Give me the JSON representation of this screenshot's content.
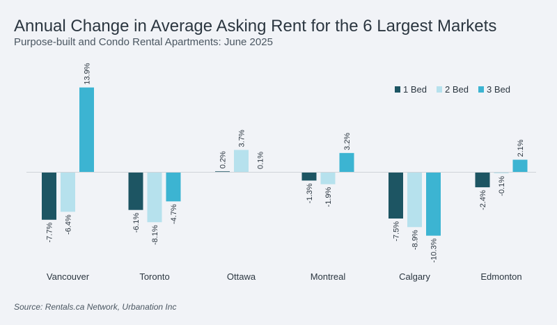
{
  "chart_data": {
    "type": "bar",
    "title": "Annual Change in Average Asking Rent for the 6 Largest Markets",
    "subtitle": "Purpose-built and Condo Rental Apartments: June 2025",
    "source": "Source: Rentals.ca Network, Urbanation Inc",
    "categories": [
      "Vancouver",
      "Toronto",
      "Ottawa",
      "Montreal",
      "Calgary",
      "Edmonton"
    ],
    "series": [
      {
        "name": "1 Bed",
        "color": "#1d5563",
        "values": [
          -7.7,
          -6.1,
          0.2,
          -1.3,
          -7.5,
          -2.4
        ],
        "labels": [
          "-7.7%",
          "-6.1%",
          "0.2%",
          "-1.3%",
          "-7.5%",
          "-2.4%"
        ]
      },
      {
        "name": "2 Bed",
        "color": "#b6e1ed",
        "values": [
          -6.4,
          -8.1,
          3.7,
          -1.9,
          -8.9,
          -0.1
        ],
        "labels": [
          "-6.4%",
          "-8.1%",
          "3.7%",
          "-1.9%",
          "-8.9%",
          "-0.1%"
        ]
      },
      {
        "name": "3 Bed",
        "color": "#3cb4d2",
        "values": [
          13.9,
          -4.7,
          0.1,
          3.2,
          -10.3,
          2.1
        ],
        "labels": [
          "13.9%",
          "-4.7%",
          "0.1%",
          "3.2%",
          "-10.3%",
          "2.1%"
        ]
      }
    ],
    "legend_position": "top-right",
    "grid": false
  }
}
